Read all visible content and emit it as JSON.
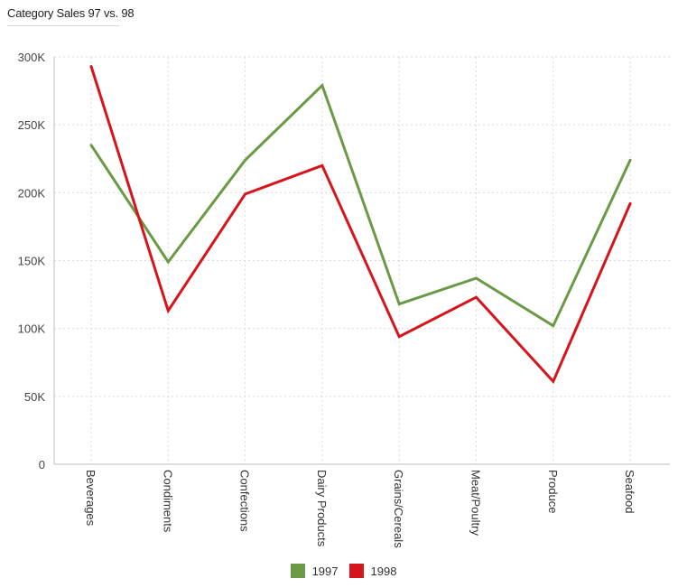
{
  "chart_data": {
    "type": "line",
    "title": "Category Sales 97 vs. 98",
    "categories": [
      "Beverages",
      "Condiments",
      "Confections",
      "Dairy Products",
      "Grains/Cereals",
      "Meat/Poultry",
      "Produce",
      "Seafood"
    ],
    "series": [
      {
        "name": "1997",
        "color": "#6a9a45",
        "values": [
          235000,
          149000,
          224000,
          279000,
          118000,
          137000,
          102000,
          224000
        ]
      },
      {
        "name": "1998",
        "color": "#d7141b",
        "values": [
          293000,
          113000,
          199000,
          220000,
          94000,
          123000,
          61000,
          192000
        ]
      }
    ],
    "yticks": [
      {
        "value": 0,
        "label": "0"
      },
      {
        "value": 50000,
        "label": "50K"
      },
      {
        "value": 100000,
        "label": "100K"
      },
      {
        "value": 150000,
        "label": "150K"
      },
      {
        "value": 200000,
        "label": "200K"
      },
      {
        "value": 250000,
        "label": "250K"
      },
      {
        "value": 300000,
        "label": "300K"
      }
    ],
    "ylim": [
      0,
      300000
    ],
    "grid": true,
    "legend_position": "bottom"
  }
}
